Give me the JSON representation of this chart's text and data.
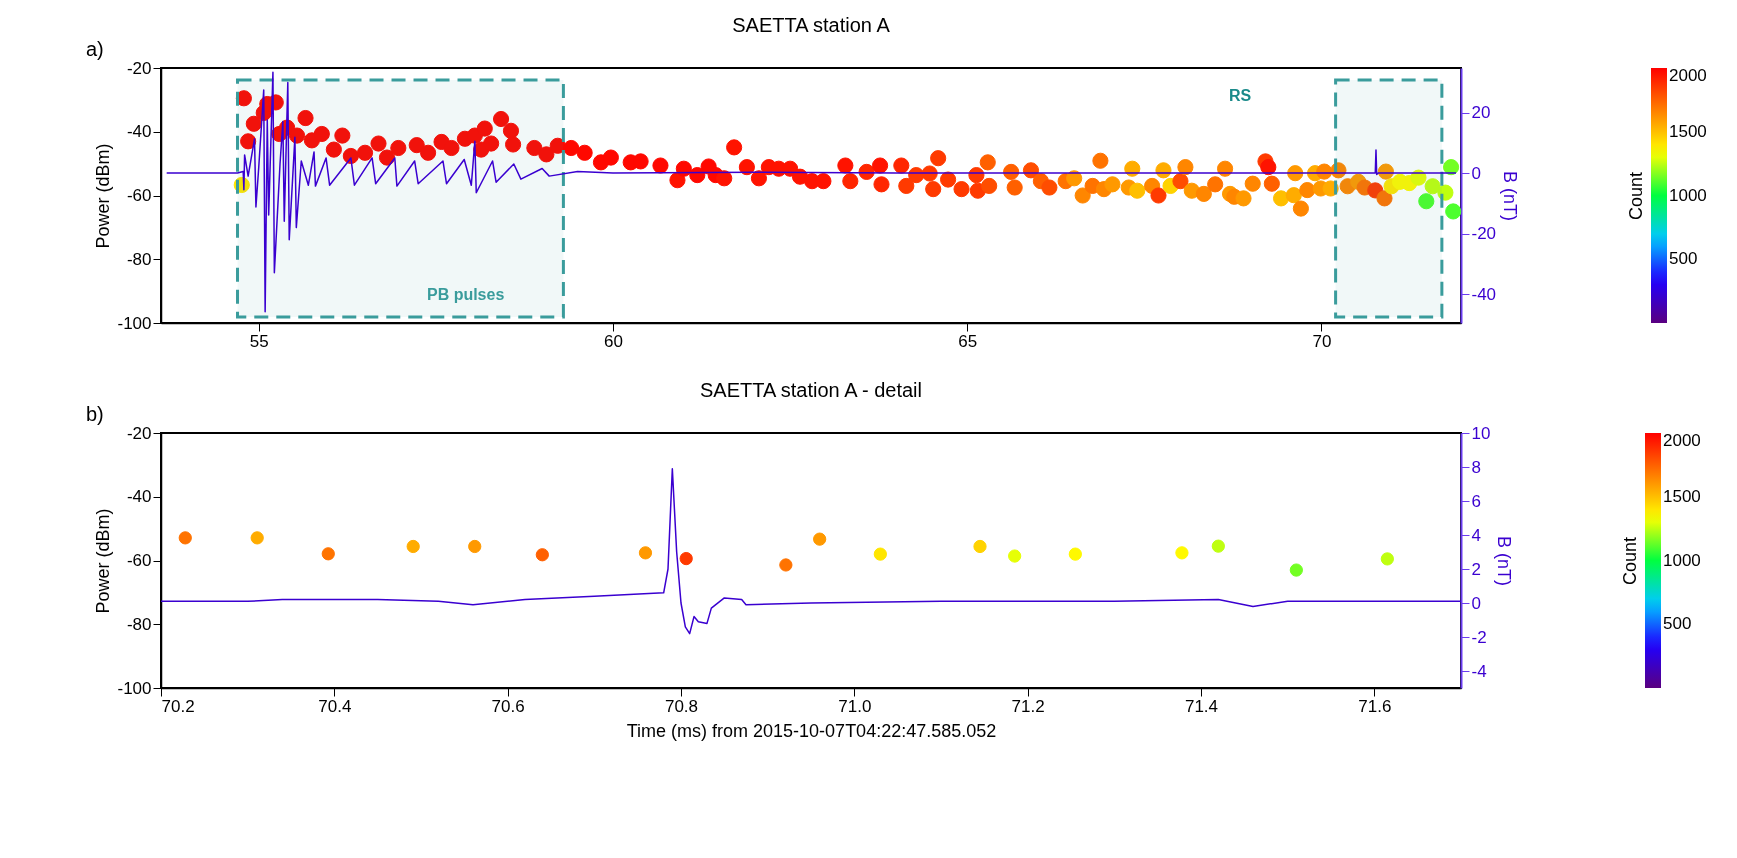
{
  "chart_data": [
    {
      "type": "scatter",
      "title": "SAETTA station A",
      "ylabel": "Power (dBm)",
      "y2label": "B (nT)",
      "clabel": "Count",
      "clim": [
        0,
        2000
      ],
      "cticks": [
        500,
        1000,
        1500,
        2000
      ],
      "marker": "circle",
      "grid": false,
      "annotations": [
        "a)",
        "RS"
      ],
      "bands": [
        {
          "axis": "x",
          "from": 54.7,
          "to": 59.3,
          "label": "PB pulses",
          "color": "#3a9c9c"
        },
        {
          "axis": "x",
          "from": 70.2,
          "to": 71.7,
          "label": null,
          "color": "#3a9c9c"
        }
      ],
      "xlim": [
        53.62,
        71.97
      ],
      "xticks": [
        55,
        60,
        65,
        70
      ],
      "ylim": [
        -100,
        -20
      ],
      "yticks": [
        -100,
        -80,
        -60,
        -40,
        -20
      ],
      "y2lim": [
        -49.5,
        34.7
      ],
      "y2ticks": [
        -40,
        -20,
        0,
        20
      ],
      "series": [
        {
          "x": [
            54.76,
            54.79,
            54.85,
            54.93,
            55.07,
            55.12,
            55.24,
            55.29,
            55.4,
            55.54,
            55.66,
            55.75,
            55.89,
            56.06,
            56.18,
            56.3,
            56.5,
            56.69,
            56.81,
            56.97,
            57.23,
            57.39,
            57.58,
            57.72,
            57.91,
            58.05,
            58.14,
            58.19,
            58.28,
            58.42,
            58.56,
            58.59,
            58.89,
            59.06,
            59.22,
            59.41,
            59.6,
            59.83,
            59.97,
            60.25,
            60.39,
            60.67,
            60.91,
            61.0,
            61.19,
            61.35,
            61.45,
            61.57,
            61.71,
            61.89,
            62.06,
            62.2,
            62.34,
            62.5,
            62.64,
            62.81,
            62.97,
            63.28,
            63.35,
            63.58,
            63.77,
            63.79,
            64.07,
            64.14,
            64.28,
            64.47,
            64.52,
            64.59,
            64.73,
            64.92,
            65.13,
            65.15,
            65.29,
            65.31,
            65.62,
            65.67,
            65.9,
            66.04,
            66.16,
            66.39,
            66.51,
            66.63,
            66.77,
            66.88,
            66.93,
            67.05,
            67.28,
            67.33,
            67.4,
            67.61,
            67.7,
            67.77,
            67.87,
            68.01,
            68.08,
            68.17,
            68.34,
            68.5,
            68.64,
            68.71,
            68.77,
            68.9,
            69.03,
            69.21,
            69.25,
            69.3,
            69.43,
            69.61,
            69.63,
            69.71,
            69.8,
            69.91,
            69.99,
            70.04,
            70.13,
            70.24,
            70.37,
            70.52,
            70.61,
            70.76,
            70.89,
            70.91,
            70.99,
            71.11,
            71.24,
            71.37,
            71.48,
            71.57,
            71.75,
            71.83,
            71.86
          ],
          "values": [
            -56.7,
            -29.5,
            -43.0,
            -37.5,
            -34.1,
            -31.3,
            -30.8,
            -40.7,
            -38.7,
            -41.2,
            -35.7,
            -42.7,
            -40.7,
            -45.6,
            -41.2,
            -47.6,
            -46.6,
            -43.7,
            -48.1,
            -45.1,
            -44.2,
            -46.6,
            -43.2,
            -45.1,
            -42.2,
            -41.2,
            -45.6,
            -39.0,
            -43.7,
            -36.0,
            -39.7,
            -44.0,
            -45.1,
            -47.1,
            -44.4,
            -45.1,
            -46.6,
            -49.6,
            -48.1,
            -49.6,
            -49.3,
            -50.6,
            -55.2,
            -51.6,
            -53.6,
            -50.9,
            -53.6,
            -54.6,
            -44.9,
            -51.1,
            -54.6,
            -51.1,
            -51.6,
            -51.6,
            -54.1,
            -55.5,
            -55.5,
            -50.6,
            -55.5,
            -52.6,
            -50.6,
            -56.5,
            -50.6,
            -57.0,
            -53.6,
            -53.1,
            -58.0,
            -48.3,
            -55.0,
            -58.0,
            -53.6,
            -58.5,
            -49.6,
            -57.0,
            -52.6,
            -57.5,
            -52.1,
            -55.5,
            -57.5,
            -55.5,
            -54.6,
            -60.0,
            -57.0,
            -49.1,
            -58.0,
            -56.5,
            -57.5,
            -51.6,
            -58.5,
            -57.0,
            -60.0,
            -52.1,
            -57.0,
            -55.5,
            -51.1,
            -58.5,
            -59.5,
            -56.5,
            -51.6,
            -59.5,
            -60.4,
            -60.9,
            -56.3,
            -49.3,
            -51.1,
            -56.3,
            -60.9,
            -59.9,
            -53.0,
            -64.1,
            -58.3,
            -53.0,
            -57.8,
            -52.5,
            -57.8,
            -52.1,
            -57.1,
            -55.7,
            -57.5,
            -58.4,
            -60.9,
            -52.5,
            -57.1,
            -55.7,
            -56.1,
            -54.4,
            -61.8,
            -57.1,
            -59.1,
            -51.1,
            -65.0
          ],
          "colors": [
            "#ffe600",
            "#ff0800",
            "#ff0800",
            "#ff0800",
            "#ff0800",
            "#ff0800",
            "#ff0800",
            "#ff0800",
            "#ff0800",
            "#ff0800",
            "#ff0800",
            "#ff0800",
            "#ff0800",
            "#ff0800",
            "#ff0800",
            "#ff0800",
            "#ff0800",
            "#ff0800",
            "#ff0800",
            "#ff0800",
            "#ff0800",
            "#ff0800",
            "#ff0800",
            "#ff0800",
            "#ff0800",
            "#ff0800",
            "#ff0800",
            "#ff0800",
            "#ff0800",
            "#ff0800",
            "#ff0800",
            "#ff0800",
            "#ff0800",
            "#ff0800",
            "#ff0800",
            "#ff0800",
            "#ff0800",
            "#ff0800",
            "#ff0800",
            "#ff0800",
            "#ff0800",
            "#ff0800",
            "#ff1300",
            "#ff0800",
            "#ff0800",
            "#ff0800",
            "#ff0800",
            "#ff1300",
            "#ff1300",
            "#ff1300",
            "#ff1300",
            "#ff1300",
            "#ff1300",
            "#ff1300",
            "#ff1300",
            "#ff1300",
            "#ff1300",
            "#ff1300",
            "#ff2600",
            "#ff2600",
            "#ff1300",
            "#ff2600",
            "#ff2600",
            "#ff3a00",
            "#ff3a00",
            "#ff3a00",
            "#ff3a00",
            "#ff3a00",
            "#ff3a00",
            "#ff3a00",
            "#ff3a00",
            "#ff3a00",
            "#ff6000",
            "#ff4d00",
            "#ff6000",
            "#ff6000",
            "#ff4d00",
            "#ff6000",
            "#ff4d00",
            "#ff7300",
            "#ff9900",
            "#ff8600",
            "#ff7300",
            "#ff7300",
            "#ff8600",
            "#ff9900",
            "#ff9900",
            "#ffac00",
            "#ffbf00",
            "#ff8600",
            "#ff3a00",
            "#ffac00",
            "#ffd200",
            "#ff4d00",
            "#ff8600",
            "#ff9900",
            "#ff8600",
            "#ff7300",
            "#ff8600",
            "#ff9900",
            "#ff8600",
            "#ff9900",
            "#ff8600",
            "#ff3a00",
            "#ff1300",
            "#ff6000",
            "#ffbf00",
            "#ffac00",
            "#ff9900",
            "#ff8600",
            "#ff8600",
            "#ffac00",
            "#ff9900",
            "#ff8600",
            "#ffac00",
            "#ff8600",
            "#ff8600",
            "#ff9900",
            "#ff7300",
            "#ff3a00",
            "#ff7300",
            "#ff9900",
            "#ffe600",
            "#fff900",
            "#fff900",
            "#e6ff06",
            "#4dff2d",
            "#bfff10",
            "#bfff10",
            "#73ff23",
            "#4dff2d"
          ],
          "cvalues": [
            1400,
            1980,
            1980,
            1980,
            1980,
            1980,
            1980,
            1980,
            1980,
            1980,
            1980,
            1980,
            1980,
            1980,
            1980,
            1980,
            1980,
            1980,
            1980,
            1980,
            1980,
            1980,
            1980,
            1980,
            1980,
            1980,
            1980,
            1980,
            1980,
            1980,
            1980,
            1980,
            1980,
            1980,
            1980,
            1980,
            1980,
            1980,
            1980,
            1980,
            1980,
            1980,
            1950,
            1980,
            1980,
            1980,
            1980,
            1950,
            1950,
            1950,
            1950,
            1950,
            1950,
            1950,
            1950,
            1950,
            1950,
            1950,
            1900,
            1900,
            1950,
            1900,
            1900,
            1850,
            1850,
            1850,
            1850,
            1850,
            1850,
            1850,
            1850,
            1850,
            1750,
            1800,
            1750,
            1750,
            1800,
            1750,
            1800,
            1700,
            1600,
            1650,
            1700,
            1700,
            1650,
            1600,
            1600,
            1550,
            1500,
            1650,
            1850,
            1550,
            1450,
            1800,
            1650,
            1600,
            1650,
            1700,
            1650,
            1600,
            1650,
            1600,
            1650,
            1850,
            1950,
            1750,
            1500,
            1550,
            1600,
            1650,
            1650,
            1550,
            1600,
            1650,
            1550,
            1650,
            1650,
            1600,
            1700,
            1850,
            1700,
            1600,
            1400,
            1350,
            1350,
            1300,
            1100,
            1250,
            1250,
            1150,
            1100
          ]
        },
        {
          "type": "line",
          "axis": "y2",
          "color": "#3a00d0",
          "marker": "none",
          "line_style": "solid",
          "x": [
            53.7,
            54.7,
            54.78,
            54.79,
            54.8,
            54.85,
            54.94,
            54.96,
            55.0,
            55.07,
            55.09,
            55.12,
            55.14,
            55.2,
            55.22,
            55.3,
            55.34,
            55.36,
            55.41,
            55.43,
            55.51,
            55.53,
            55.6,
            55.7,
            55.78,
            55.8,
            55.95,
            56.0,
            56.3,
            56.35,
            56.6,
            56.65,
            56.92,
            56.95,
            57.2,
            57.25,
            57.6,
            57.65,
            57.9,
            58.0,
            58.05,
            58.07,
            58.3,
            58.35,
            58.6,
            58.7,
            59.0,
            59.1,
            59.5,
            60,
            62,
            64,
            66,
            68,
            70,
            70.76,
            70.77,
            70.78,
            70.8,
            71.9
          ],
          "values": [
            0,
            0,
            0.5,
            -5.5,
            6,
            -1,
            11.3,
            -11.2,
            2,
            27.4,
            -45.8,
            17.5,
            -13.8,
            33.3,
            -32.9,
            3,
            17,
            -15.9,
            29.9,
            -22,
            11.8,
            -18,
            4,
            -4,
            7,
            -4.3,
            5,
            -4,
            5,
            -4,
            5,
            -3.5,
            5,
            -4.3,
            4,
            -3.5,
            4,
            -3.5,
            4.5,
            -4,
            10.5,
            -6.5,
            4,
            -3,
            3,
            -2,
            1.5,
            -1,
            0.5,
            0,
            0.3,
            0,
            0,
            0,
            0,
            0,
            7.6,
            -0.5,
            0,
            0
          ]
        }
      ]
    },
    {
      "type": "scatter",
      "title": "SAETTA station A - detail",
      "xlabel": "Time (ms) from 2015-10-07T04:22:47.585.052",
      "ylabel": "Power (dBm)",
      "y2label": "B (nT)",
      "clabel": "Count",
      "clim": [
        0,
        2000
      ],
      "cticks": [
        500,
        1000,
        1500,
        2000
      ],
      "marker": "circle",
      "grid": false,
      "annotations": [
        "b)"
      ],
      "xlim": [
        70.2,
        71.7
      ],
      "xticks": [
        70.2,
        70.4,
        70.6,
        70.8,
        {
          "value": 71,
          "label": "71.0"
        },
        71.2,
        71.4,
        71.6
      ],
      "ylim": [
        -100,
        -20
      ],
      "yticks": [
        -100,
        -80,
        -60,
        -40,
        -20
      ],
      "y2lim": [
        -5,
        10
      ],
      "y2ticks": [
        -4,
        -2,
        0,
        2,
        4,
        6,
        8,
        10
      ],
      "series": [
        {
          "x": [
            70.228,
            70.311,
            70.393,
            70.491,
            70.562,
            70.64,
            70.759,
            70.806,
            70.921,
            70.96,
            71.03,
            71.145,
            71.185,
            71.255,
            71.378,
            71.42,
            71.51,
            71.615
          ],
          "values": [
            -52.9,
            -52.9,
            -57.9,
            -55.6,
            -55.6,
            -58.2,
            -57.6,
            -59.4,
            -61.4,
            -53.3,
            -58.0,
            -55.6,
            -58.6,
            -58.0,
            -57.6,
            -55.5,
            -63.0,
            -59.5
          ],
          "colors": [
            "#ff7300",
            "#ffac00",
            "#ff7300",
            "#ffac00",
            "#ff9900",
            "#ff6000",
            "#ff9900",
            "#ff3a00",
            "#ff7300",
            "#ff9900",
            "#ffe600",
            "#ffd200",
            "#e6ff06",
            "#fff900",
            "#fff900",
            "#bfff10",
            "#73ff23",
            "#bfff10"
          ],
          "cvalues": [
            1700,
            1550,
            1700,
            1550,
            1600,
            1750,
            1600,
            1850,
            1700,
            1600,
            1400,
            1450,
            1300,
            1350,
            1350,
            1250,
            1150,
            1250
          ]
        },
        {
          "type": "line",
          "axis": "y2",
          "color": "#3a00d0",
          "marker": "none",
          "line_style": "solid",
          "x": [
            70.2,
            70.3,
            70.34,
            70.45,
            70.52,
            70.56,
            70.62,
            70.7,
            70.78,
            70.785,
            70.79,
            70.795,
            70.8,
            70.805,
            70.81,
            70.815,
            70.82,
            70.83,
            70.835,
            70.85,
            70.87,
            70.875,
            70.95,
            71.1,
            71.3,
            71.42,
            71.46,
            71.5,
            71.7
          ],
          "values": [
            0.1,
            0.1,
            0.2,
            0.2,
            0.1,
            -0.1,
            0.2,
            0.4,
            0.6,
            2,
            7.9,
            3,
            0,
            -1.4,
            -1.8,
            -0.8,
            -1.1,
            -1.2,
            -0.3,
            0.3,
            0.2,
            -0.1,
            0,
            0.1,
            0.1,
            0.2,
            -0.2,
            0.1,
            0.1
          ]
        }
      ]
    }
  ]
}
